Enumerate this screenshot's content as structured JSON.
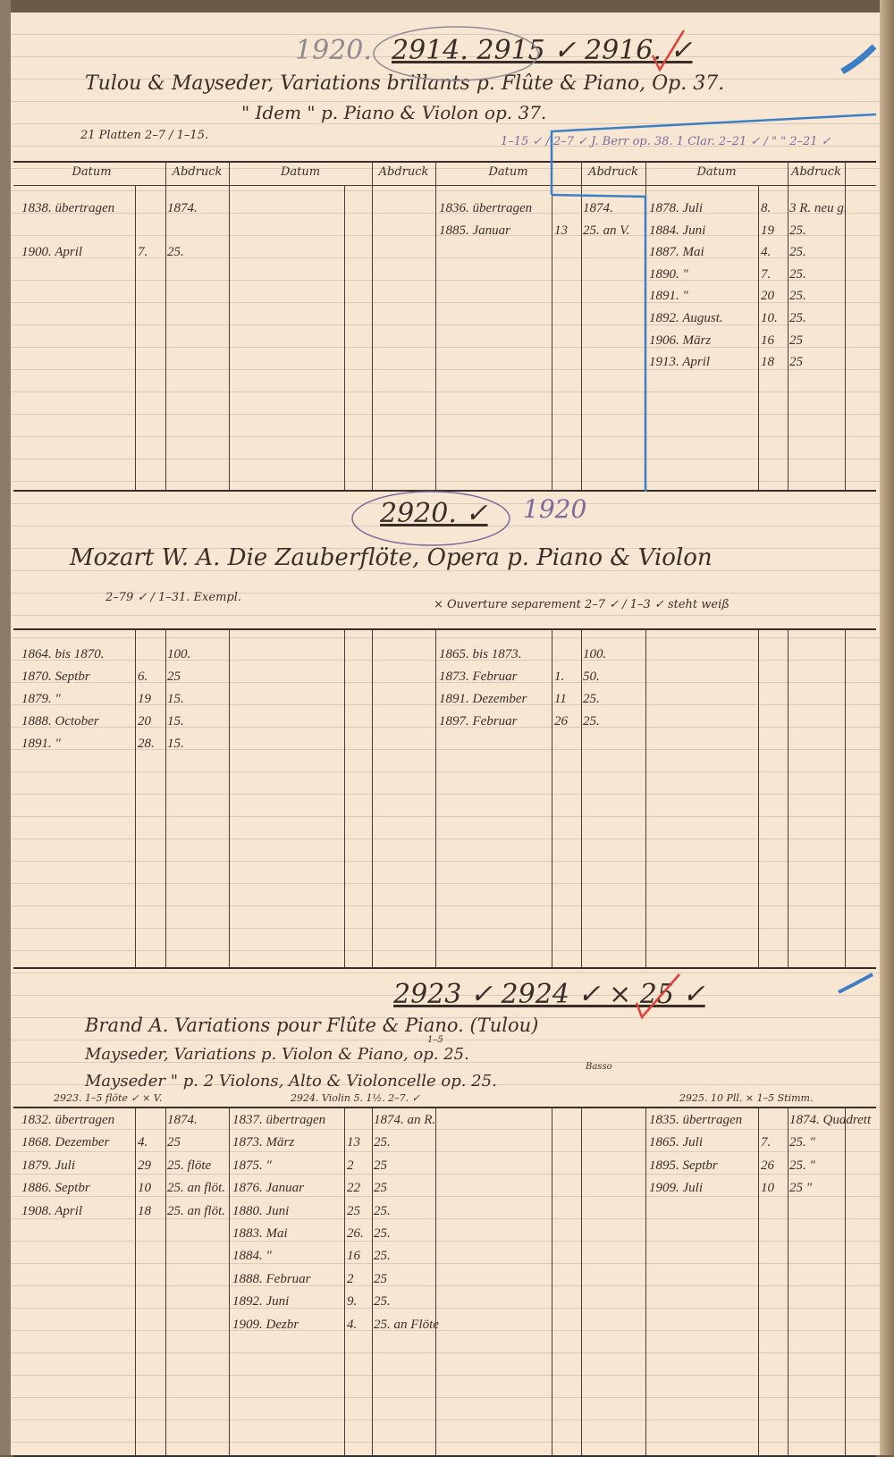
{
  "ink_colors": {
    "ink": "#3a2e28",
    "blue_pencil": "#3d7fc4",
    "red_check": "#e0403a",
    "violet": "#7a6a9e"
  },
  "column_headers": [
    "Datum",
    "Abdruck",
    "Datum",
    "Abdruck",
    "Datum",
    "Abdruck",
    "Datum",
    "Abdruck"
  ],
  "sections": [
    {
      "year_note": "1920.",
      "numbers": "2914. 2915 ✓ 2916. ✓",
      "title_lines": [
        "Tulou & Mayseder, Variations brillants p. Flûte & Piano, Op. 37.",
        "\"     Idem     \"     p. Piano & Violon     op. 37."
      ],
      "note_left": "21 Platten  2–7 / 1–15.",
      "note_right": "1–15 ✓ / 2–7 ✓   J. Berr op. 38.  1 Clar. 2–21 ✓  /  \" \" 2–21 ✓",
      "groups": [
        [
          [
            "1838. übertragen",
            "",
            "1874."
          ],
          [
            "",
            "",
            ""
          ],
          [
            "1900. April",
            "7.",
            "25."
          ]
        ],
        [],
        [
          [
            "1836. übertragen",
            "",
            "1874."
          ],
          [
            "1885. Januar",
            "13",
            "25. an V."
          ]
        ],
        [
          [
            "1878. Juli",
            "8.",
            "3 R. neu g."
          ],
          [
            "1884. Juni",
            "19",
            "25."
          ],
          [
            "1887. Mai",
            "4.",
            "25."
          ],
          [
            "1890. \"",
            "7.",
            "25."
          ],
          [
            "1891. \"",
            "20",
            "25."
          ],
          [
            "1892. August.",
            "10.",
            "25."
          ],
          [
            "1906. März",
            "16",
            "25"
          ],
          [
            "1913. April",
            "18",
            "25"
          ]
        ]
      ]
    },
    {
      "year_note": "1920",
      "numbers": "2920. ✓",
      "title_lines": [
        "Mozart W. A.   Die Zauberflöte, Opera p. Piano & Violon"
      ],
      "note_left": "2–79 ✓ / 1–31.  Exempl.",
      "note_right": "× Ouverture separement  2–7 ✓ / 1–3 ✓   steht weiß",
      "groups": [
        [
          [
            "1864. bis 1870.",
            "",
            "100."
          ],
          [
            "1870. Septbr",
            "6.",
            "25"
          ],
          [
            "1879. \"",
            "19",
            "15."
          ],
          [
            "1888. October",
            "20",
            "15."
          ],
          [
            "1891. \"",
            "28.",
            "15."
          ]
        ],
        [],
        [
          [
            "1865. bis 1873.",
            "",
            "100."
          ],
          [
            "1873. Februar",
            "1.",
            "50."
          ],
          [
            "1891. Dezember",
            "11",
            "25."
          ],
          [
            "1897. Februar",
            "26",
            "25."
          ]
        ],
        []
      ]
    },
    {
      "year_note": "",
      "numbers": "2923 ✓ 2924 ✓ × 25 ✓",
      "title_lines": [
        "Brand A.   Variations pour Flûte & Piano. (Tulou)",
        "Mayseder,   Variations p. Violon & Piano, op. 25.",
        "Mayseder        \"        p. 2 Violons, Alto & Violoncelle op. 25."
      ],
      "superscripts": [
        "1–5",
        "Basso"
      ],
      "sub_notes": [
        "2923.  1–5 flöte ✓   × V.",
        "2924.  Violin 5. 1½. 2–7. ✓",
        "2925.   10 Pll. × 1–5 Stimm."
      ],
      "groups": [
        [
          [
            "1832. übertragen",
            "",
            "1874."
          ],
          [
            "1868. Dezember",
            "4.",
            "25"
          ],
          [
            "1879. Juli",
            "29",
            "25. flöte"
          ],
          [
            "1886. Septbr",
            "10",
            "25. an flöt."
          ],
          [
            "1908. April",
            "18",
            "25. an flöt."
          ]
        ],
        [
          [
            "1837. übertragen",
            "",
            "1874. an R."
          ],
          [
            "1873. März",
            "13",
            "25."
          ],
          [
            "1875. \"",
            "2",
            "25"
          ],
          [
            "1876. Januar",
            "22",
            "25"
          ],
          [
            "1880. Juni",
            "25",
            "25."
          ],
          [
            "1883. Mai",
            "26.",
            "25."
          ],
          [
            "1884. \"",
            "16",
            "25."
          ],
          [
            "1888. Februar",
            "2",
            "25"
          ],
          [
            "1892. Juni",
            "9.",
            "25."
          ],
          [
            "1909. Dezbr",
            "4.",
            "25. an Flöte"
          ]
        ],
        [],
        [
          [
            "1835. übertragen",
            "",
            "1874. Quadrett"
          ],
          [
            "1865. Juli",
            "7.",
            "25. \""
          ],
          [
            "1895. Septbr",
            "26",
            "25. \""
          ],
          [
            "1909. Juli",
            "10",
            "25 \""
          ]
        ]
      ]
    }
  ]
}
